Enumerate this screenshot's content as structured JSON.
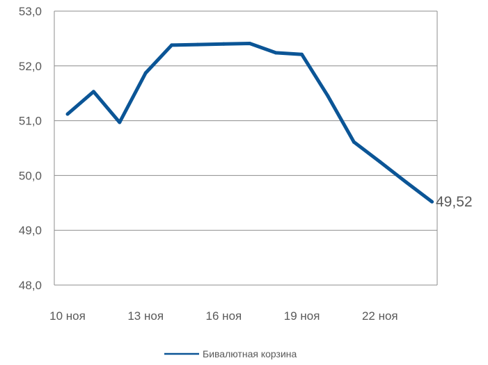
{
  "chart_data": {
    "type": "line",
    "title": "",
    "xlabel": "",
    "ylabel": "",
    "ylim": [
      48,
      53
    ],
    "grid": true,
    "legend_placement": "bottom",
    "x": [
      "10 ноя",
      "11 ноя",
      "12 ноя",
      "13 ноя",
      "14 ноя",
      "15 ноя",
      "16 ноя",
      "17 ноя",
      "18 ноя",
      "19 ноя",
      "20 ноя",
      "21 ноя",
      "22 ноя",
      "23 ноя",
      "24 ноя"
    ],
    "x_tick_labels": [
      "10 ноя",
      "13 ноя",
      "16 ноя",
      "19 ноя",
      "22 ноя"
    ],
    "y_tick_labels": [
      "48,0",
      "49,0",
      "50,0",
      "51,0",
      "52,0",
      "53,0"
    ],
    "y_ticks": [
      48,
      49,
      50,
      51,
      52,
      53
    ],
    "series": [
      {
        "name": "Бивалютная корзина",
        "color": "#0b5596",
        "values": [
          51.12,
          51.53,
          50.97,
          51.87,
          52.38,
          52.39,
          52.4,
          52.41,
          52.24,
          52.21,
          51.45,
          50.61,
          50.25,
          49.88,
          49.52
        ]
      }
    ],
    "end_label": "49,52"
  }
}
